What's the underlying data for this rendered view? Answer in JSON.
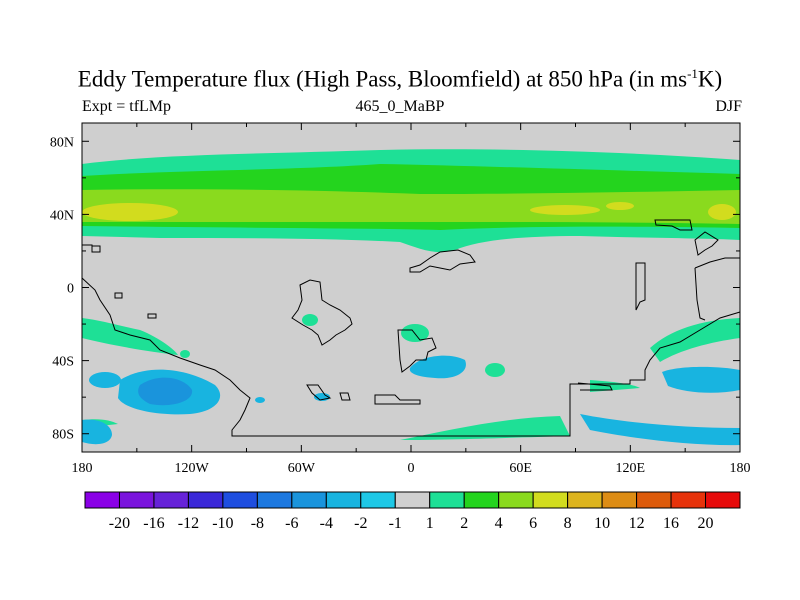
{
  "title": {
    "prefix": "Eddy Temperature flux (High Pass, Bloomfield) at 850 hPa (in ms",
    "superscript": "-1",
    "suffix": "K)"
  },
  "subtitle_left": "Expt = tfLMp",
  "subtitle_center": "465_0_MaBP",
  "subtitle_right": "DJF",
  "map": {
    "projection": "cylindrical equidistant",
    "background_color": "#cfcfcf",
    "lon_range": [
      -180,
      180
    ],
    "lat_range": [
      -90,
      90
    ]
  },
  "axes": {
    "x_ticks": [
      "180",
      "120W",
      "60W",
      "0",
      "60E",
      "120E",
      "180"
    ],
    "y_ticks": [
      "80N",
      "40N",
      "0",
      "40S",
      "80S"
    ]
  },
  "colorbar": {
    "labels": [
      "-20",
      "-16",
      "-12",
      "-10",
      "-8",
      "-6",
      "-4",
      "-2",
      "-1",
      "1",
      "2",
      "4",
      "6",
      "8",
      "10",
      "12",
      "16",
      "20"
    ],
    "colors": [
      "#8a00e6",
      "#7a14dc",
      "#6622d8",
      "#3a28d8",
      "#1e4ee0",
      "#1c78e0",
      "#1a94dc",
      "#18b4e0",
      "#1ec8e6",
      "#cfcfcf",
      "#1ee096",
      "#24d41e",
      "#8ada1e",
      "#d2dc1e",
      "#dcb41e",
      "#dc8c14",
      "#dc5a0a",
      "#e6320a",
      "#e60a0a"
    ]
  },
  "chart_data": {
    "type": "heatmap",
    "title": "Eddy Temperature flux (High Pass, Bloomfield) at 850 hPa (in ms-1K)",
    "variable": "Eddy Temperature flux",
    "units": "m s-1 K",
    "level": "850 hPa",
    "season": "DJF",
    "experiment": "tfLMp",
    "period": "465_0_MaBP",
    "x_range": [
      -180,
      180
    ],
    "y_range": [
      -90,
      90
    ],
    "contour_levels": [
      -20,
      -16,
      -12,
      -10,
      -8,
      -6,
      -4,
      -2,
      -1,
      1,
      2,
      4,
      6,
      8,
      10,
      12,
      16,
      20
    ],
    "features": [
      {
        "name": "northern storm track band",
        "lat_range": [
          25,
          65
        ],
        "peak_value": 8,
        "peak_lat": 38
      },
      {
        "name": "southern ocean positive band",
        "lat_range": [
          -85,
          -65
        ],
        "value": 1
      },
      {
        "name": "southern negative patches",
        "lat_range": [
          -70,
          -40
        ],
        "min_value": -4
      }
    ]
  }
}
